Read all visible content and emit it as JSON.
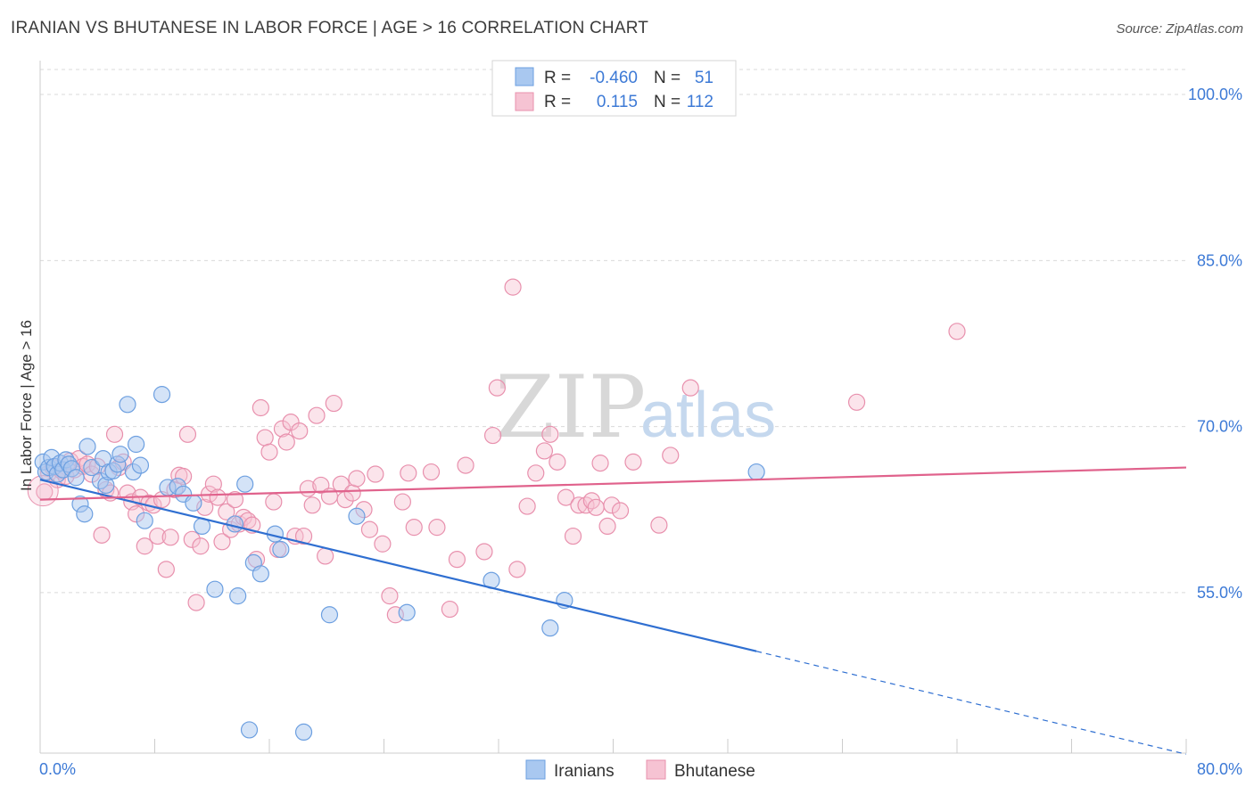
{
  "header": {
    "title": "IRANIAN VS BHUTANESE IN LABOR FORCE | AGE > 16 CORRELATION CHART",
    "source": "Source: ZipAtlas.com"
  },
  "watermark": {
    "zip": "ZIP",
    "atlas": "atlas"
  },
  "colors": {
    "iranians_fill": "#a9c8f0",
    "iranians_stroke": "#6c9fe0",
    "iranians_line": "#2f6fd1",
    "bhutanese_fill": "#f6c3d3",
    "bhutanese_stroke": "#e890ad",
    "bhutanese_line": "#e0628c",
    "grid": "#d9d9d9",
    "tick_text": "#3d7ad6"
  },
  "legend": {
    "rows": [
      {
        "r_label": "R =",
        "r_value": "-0.460",
        "n_label": "N =",
        "n_value": "51"
      },
      {
        "r_label": "R =",
        "r_value": "0.115",
        "n_label": "N =",
        "n_value": "112"
      }
    ]
  },
  "chart_data": {
    "type": "scatter",
    "title": "IRANIAN VS BHUTANESE IN LABOR FORCE | AGE > 16 CORRELATION CHART",
    "xlabel": "",
    "ylabel": "In Labor Force | Age > 16",
    "xlim": [
      0,
      80
    ],
    "ylim": [
      40.5,
      102.5
    ],
    "x_tick_labels": [
      "0.0%",
      "80.0%"
    ],
    "y_ticks": [
      55,
      70,
      85,
      100
    ],
    "y_tick_labels": [
      "55.0%",
      "70.0%",
      "85.0%",
      "100.0%"
    ],
    "legend_position": "top-center",
    "series": [
      {
        "name": "Iranians",
        "r": -0.46,
        "n": 51,
        "trend": {
          "x0": 0,
          "y0": 65.2,
          "x1": 50.0,
          "y1": 49.7,
          "dashed_to_x": 80.0,
          "dashed_to_y": 40.4
        },
        "points": [
          [
            0.2,
            66.8
          ],
          [
            0.4,
            65.9
          ],
          [
            0.6,
            66.3
          ],
          [
            0.8,
            67.2
          ],
          [
            1.0,
            66.4
          ],
          [
            1.2,
            65.7
          ],
          [
            1.4,
            66.7
          ],
          [
            1.6,
            66.1
          ],
          [
            1.8,
            67.0
          ],
          [
            2.0,
            66.6
          ],
          [
            2.2,
            66.2
          ],
          [
            2.5,
            65.4
          ],
          [
            2.8,
            63.0
          ],
          [
            3.1,
            62.1
          ],
          [
            3.3,
            68.2
          ],
          [
            3.6,
            66.3
          ],
          [
            4.2,
            65.1
          ],
          [
            4.4,
            67.1
          ],
          [
            4.6,
            64.7
          ],
          [
            4.8,
            65.9
          ],
          [
            5.1,
            66.0
          ],
          [
            5.4,
            66.6
          ],
          [
            5.6,
            67.5
          ],
          [
            6.1,
            72.0
          ],
          [
            6.5,
            65.9
          ],
          [
            6.7,
            68.4
          ],
          [
            7.0,
            66.5
          ],
          [
            7.3,
            61.5
          ],
          [
            8.5,
            72.9
          ],
          [
            8.9,
            64.5
          ],
          [
            9.6,
            64.6
          ],
          [
            10.0,
            63.9
          ],
          [
            10.7,
            63.1
          ],
          [
            11.3,
            61.0
          ],
          [
            12.2,
            55.3
          ],
          [
            13.6,
            61.2
          ],
          [
            13.8,
            54.7
          ],
          [
            14.3,
            64.8
          ],
          [
            14.6,
            42.6
          ],
          [
            14.9,
            57.7
          ],
          [
            15.4,
            56.7
          ],
          [
            16.4,
            60.3
          ],
          [
            16.8,
            58.9
          ],
          [
            18.4,
            42.4
          ],
          [
            20.2,
            53.0
          ],
          [
            22.1,
            61.9
          ],
          [
            25.6,
            53.2
          ],
          [
            31.5,
            56.1
          ],
          [
            35.6,
            51.8
          ],
          [
            36.6,
            54.3
          ],
          [
            50.0,
            65.9
          ]
        ]
      },
      {
        "name": "Bhutanese",
        "r": 0.115,
        "n": 112,
        "trend": {
          "x0": 0,
          "y0": 63.4,
          "x1": 80.0,
          "y1": 66.3
        },
        "points": [
          [
            0.3,
            64.1
          ],
          [
            0.6,
            65.8
          ],
          [
            0.9,
            66.3
          ],
          [
            1.2,
            65.2
          ],
          [
            1.5,
            66.0
          ],
          [
            1.8,
            65.5
          ],
          [
            2.1,
            66.9
          ],
          [
            2.4,
            66.1
          ],
          [
            2.7,
            67.1
          ],
          [
            3.0,
            66.4
          ],
          [
            3.3,
            66.6
          ],
          [
            3.6,
            65.7
          ],
          [
            4.0,
            66.4
          ],
          [
            4.3,
            60.2
          ],
          [
            4.6,
            64.3
          ],
          [
            4.9,
            64.0
          ],
          [
            5.2,
            69.3
          ],
          [
            5.5,
            66.3
          ],
          [
            5.8,
            66.8
          ],
          [
            6.1,
            64.0
          ],
          [
            6.4,
            63.2
          ],
          [
            6.7,
            62.1
          ],
          [
            7.0,
            63.6
          ],
          [
            7.3,
            59.2
          ],
          [
            7.6,
            63.1
          ],
          [
            7.9,
            62.9
          ],
          [
            8.2,
            60.1
          ],
          [
            8.5,
            63.4
          ],
          [
            8.8,
            57.1
          ],
          [
            9.1,
            60.0
          ],
          [
            9.4,
            64.3
          ],
          [
            9.7,
            65.6
          ],
          [
            10.0,
            65.5
          ],
          [
            10.3,
            69.3
          ],
          [
            10.6,
            59.8
          ],
          [
            10.9,
            54.1
          ],
          [
            11.2,
            59.2
          ],
          [
            11.5,
            62.7
          ],
          [
            11.8,
            63.9
          ],
          [
            12.1,
            64.8
          ],
          [
            12.4,
            63.6
          ],
          [
            12.7,
            59.6
          ],
          [
            13.0,
            62.3
          ],
          [
            13.3,
            60.7
          ],
          [
            13.6,
            63.4
          ],
          [
            13.9,
            61.2
          ],
          [
            14.2,
            61.8
          ],
          [
            14.5,
            61.5
          ],
          [
            14.8,
            61.1
          ],
          [
            15.1,
            58.0
          ],
          [
            15.4,
            71.7
          ],
          [
            15.7,
            69.0
          ],
          [
            16.0,
            67.7
          ],
          [
            16.3,
            63.2
          ],
          [
            16.6,
            58.9
          ],
          [
            16.9,
            69.8
          ],
          [
            17.2,
            68.6
          ],
          [
            17.5,
            70.4
          ],
          [
            17.8,
            60.1
          ],
          [
            18.1,
            69.6
          ],
          [
            18.4,
            60.1
          ],
          [
            18.7,
            64.4
          ],
          [
            19.0,
            62.9
          ],
          [
            19.3,
            71.0
          ],
          [
            19.6,
            64.7
          ],
          [
            19.9,
            58.3
          ],
          [
            20.2,
            63.7
          ],
          [
            20.5,
            72.1
          ],
          [
            21.0,
            64.8
          ],
          [
            21.3,
            63.4
          ],
          [
            21.8,
            64.0
          ],
          [
            22.1,
            65.3
          ],
          [
            22.6,
            62.5
          ],
          [
            23.0,
            60.7
          ],
          [
            23.4,
            65.7
          ],
          [
            23.9,
            59.4
          ],
          [
            24.4,
            54.7
          ],
          [
            24.8,
            53.0
          ],
          [
            25.3,
            63.2
          ],
          [
            25.7,
            65.8
          ],
          [
            26.1,
            60.9
          ],
          [
            27.3,
            65.9
          ],
          [
            27.7,
            60.9
          ],
          [
            28.6,
            53.5
          ],
          [
            29.1,
            58.0
          ],
          [
            29.7,
            66.5
          ],
          [
            31.0,
            58.7
          ],
          [
            31.6,
            69.2
          ],
          [
            31.9,
            73.5
          ],
          [
            33.0,
            82.6
          ],
          [
            33.3,
            57.1
          ],
          [
            34.0,
            62.8
          ],
          [
            34.6,
            65.8
          ],
          [
            35.2,
            67.8
          ],
          [
            35.6,
            69.3
          ],
          [
            36.1,
            66.8
          ],
          [
            36.7,
            63.6
          ],
          [
            37.2,
            60.1
          ],
          [
            37.6,
            62.9
          ],
          [
            38.1,
            62.9
          ],
          [
            38.5,
            63.3
          ],
          [
            38.8,
            62.7
          ],
          [
            39.1,
            66.7
          ],
          [
            39.6,
            61.0
          ],
          [
            39.9,
            62.9
          ],
          [
            40.5,
            62.4
          ],
          [
            41.4,
            66.8
          ],
          [
            43.2,
            61.1
          ],
          [
            44.0,
            67.4
          ],
          [
            45.4,
            73.5
          ],
          [
            57.0,
            72.2
          ],
          [
            64.0,
            78.6
          ]
        ]
      }
    ]
  },
  "bottom_legend": {
    "items": [
      "Iranians",
      "Bhutanese"
    ]
  }
}
